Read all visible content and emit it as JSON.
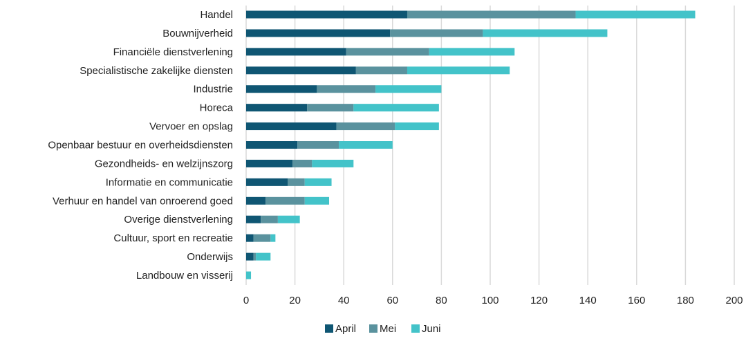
{
  "chart_data": {
    "type": "bar",
    "orientation": "horizontal",
    "stacked": true,
    "categories": [
      "Handel",
      "Bouwnijverheid",
      "Financiële dienstverlening",
      "Specialistische zakelijke diensten",
      "Industrie",
      "Horeca",
      "Vervoer en opslag ",
      "Openbaar bestuur en overheidsdiensten",
      "Gezondheids- en welzijnszorg ",
      "Informatie en communicatie",
      "Verhuur en handel van onroerend goed",
      "Overige dienstverlening",
      "Cultuur, sport en recreatie",
      "Onderwijs",
      "Landbouw en visserij"
    ],
    "series": [
      {
        "name": "April",
        "color": "#0f5673",
        "values": [
          66,
          59,
          41,
          45,
          29,
          25,
          37,
          21,
          19,
          17,
          8,
          6,
          3,
          3,
          0
        ]
      },
      {
        "name": "Mei",
        "color": "#5a929e",
        "values": [
          69,
          38,
          34,
          21,
          24,
          19,
          24,
          17,
          8,
          7,
          16,
          7,
          7,
          1,
          0
        ]
      },
      {
        "name": "Juni",
        "color": "#43c3c9",
        "values": [
          49,
          51,
          35,
          42,
          27,
          35,
          18,
          22,
          17,
          11,
          10,
          9,
          2,
          6,
          2
        ]
      }
    ],
    "xlim": [
      0,
      200
    ],
    "xticks": [
      "0",
      "20",
      "40",
      "60",
      "80",
      "100",
      "120",
      "140",
      "160",
      "180",
      "200"
    ],
    "grid": true,
    "legend": "bottom"
  }
}
